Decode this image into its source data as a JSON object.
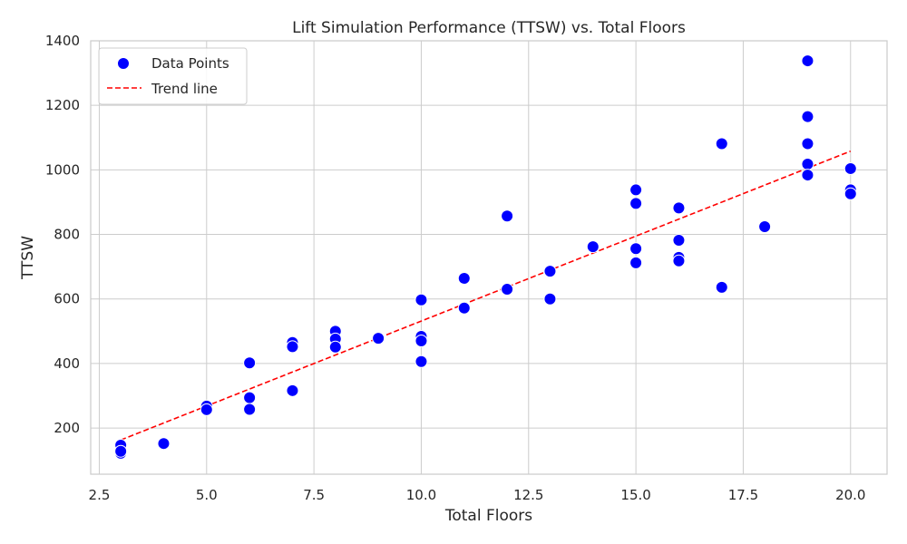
{
  "chart_data": {
    "type": "scatter",
    "title": "Lift Simulation Performance (TTSW) vs. Total Floors",
    "xlabel": "Total Floors",
    "ylabel": "TTSW",
    "xlim": [
      2.3,
      20.85
    ],
    "ylim": [
      57,
      1400
    ],
    "xticks": [
      2.5,
      5.0,
      7.5,
      10.0,
      12.5,
      15.0,
      17.5,
      20.0
    ],
    "xtick_labels": [
      "2.5",
      "5.0",
      "7.5",
      "10.0",
      "12.5",
      "15.0",
      "17.5",
      "20.0"
    ],
    "yticks": [
      200,
      400,
      600,
      800,
      1000,
      1200,
      1400
    ],
    "ytick_labels": [
      "200",
      "400",
      "600",
      "800",
      "1000",
      "1200",
      "1400"
    ],
    "grid": true,
    "legend_placement": "top-left",
    "series": [
      {
        "name": "Data Points",
        "kind": "scatter",
        "color": "#0000ff",
        "points": [
          [
            3,
            122
          ],
          [
            3,
            133
          ],
          [
            3,
            147
          ],
          [
            3,
            128
          ],
          [
            4,
            152
          ],
          [
            5,
            268
          ],
          [
            5,
            257
          ],
          [
            6,
            402
          ],
          [
            6,
            294
          ],
          [
            6,
            258
          ],
          [
            7,
            465
          ],
          [
            7,
            452
          ],
          [
            7,
            316
          ],
          [
            8,
            500
          ],
          [
            8,
            476
          ],
          [
            8,
            451
          ],
          [
            9,
            478
          ],
          [
            10,
            597
          ],
          [
            10,
            484
          ],
          [
            10,
            470
          ],
          [
            10,
            406
          ],
          [
            11,
            664
          ],
          [
            11,
            572
          ],
          [
            12,
            857
          ],
          [
            12,
            630
          ],
          [
            13,
            686
          ],
          [
            13,
            600
          ],
          [
            14,
            762
          ],
          [
            15,
            938
          ],
          [
            15,
            896
          ],
          [
            15,
            756
          ],
          [
            15,
            712
          ],
          [
            16,
            882
          ],
          [
            16,
            782
          ],
          [
            16,
            729
          ],
          [
            16,
            718
          ],
          [
            17,
            1081
          ],
          [
            17,
            636
          ],
          [
            18,
            824
          ],
          [
            19,
            1338
          ],
          [
            19,
            1165
          ],
          [
            19,
            1081
          ],
          [
            19,
            1018
          ],
          [
            19,
            984
          ],
          [
            20,
            1004
          ],
          [
            20,
            938
          ],
          [
            20,
            926
          ]
        ]
      },
      {
        "name": "Trend line",
        "kind": "line",
        "color": "#ff0000",
        "dash": "dashed",
        "points": [
          [
            3,
            163
          ],
          [
            20,
            1058
          ]
        ]
      }
    ]
  }
}
